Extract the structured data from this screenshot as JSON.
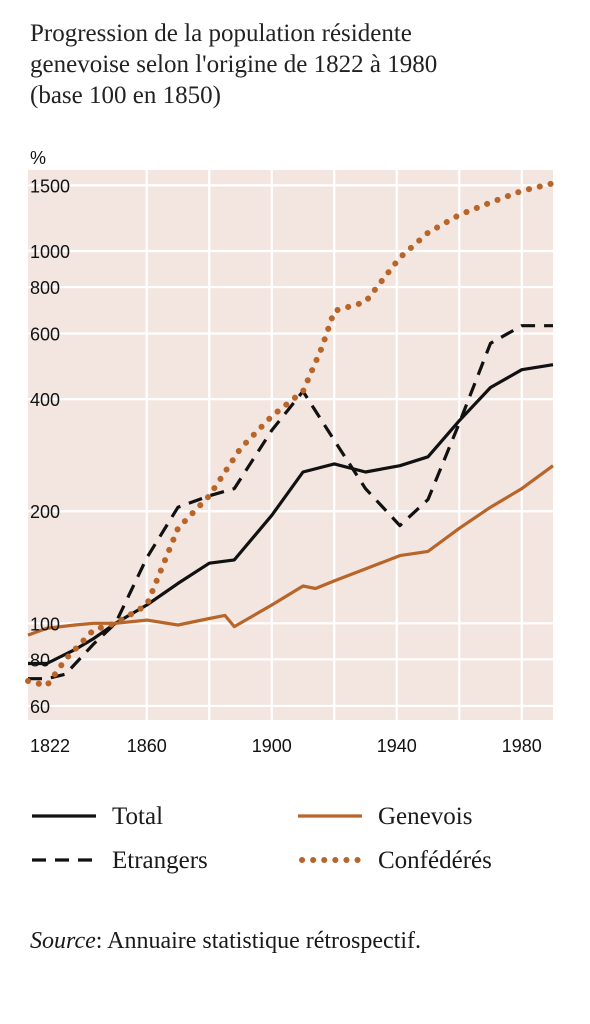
{
  "chart_data": {
    "type": "line",
    "title": "Progression de la population résidente genevoise selon l'origine de 1822 à 1980 (base 100 en 1850)",
    "title_lines": [
      "Progression de la population résidente",
      "genevoise selon l'origine de 1822 à 1980",
      "(base 100 en 1850)"
    ],
    "ylabel": "%",
    "yscale": "log",
    "ylim": [
      55,
      1650
    ],
    "xlim": [
      1822,
      1990
    ],
    "grid": true,
    "y_ticks": [
      60,
      80,
      100,
      200,
      400,
      600,
      800,
      1000,
      1500
    ],
    "y_tick_labels": [
      "60",
      "80",
      "100",
      "200",
      "400",
      "600",
      "800",
      "1000",
      "1500"
    ],
    "x_ticks": [
      1822,
      1860,
      1900,
      1940,
      1980
    ],
    "x_tick_labels": [
      "1822",
      "1860",
      "1900",
      "1940",
      "1980"
    ],
    "x_gridlines": [
      1860,
      1880,
      1900,
      1920,
      1940,
      1960,
      1980
    ],
    "y_gridlines": [
      60,
      80,
      100,
      200,
      400,
      600,
      800,
      1000,
      1500
    ],
    "legend_position": "bottom",
    "series": [
      {
        "name": "Total",
        "color": "#111111",
        "style": "solid",
        "x": [
          1822,
          1828,
          1837,
          1843,
          1850,
          1860,
          1870,
          1880,
          1888,
          1900,
          1910,
          1920,
          1930,
          1941,
          1950,
          1960,
          1970,
          1980,
          1990
        ],
        "y": [
          78,
          78,
          85,
          91,
          100,
          112,
          128,
          145,
          148,
          195,
          255,
          268,
          255,
          265,
          280,
          350,
          430,
          480,
          495
        ]
      },
      {
        "name": "Genevois",
        "color": "#b8652a",
        "style": "solid",
        "x": [
          1822,
          1828,
          1837,
          1843,
          1850,
          1860,
          1870,
          1880,
          1885,
          1888,
          1900,
          1910,
          1914,
          1920,
          1930,
          1941,
          1950,
          1960,
          1970,
          1980,
          1990
        ],
        "y": [
          93,
          97,
          99,
          100,
          100,
          102,
          99,
          103,
          105,
          98,
          112,
          126,
          124,
          130,
          140,
          152,
          156,
          180,
          205,
          230,
          265
        ]
      },
      {
        "name": "Etrangers",
        "color": "#111111",
        "style": "dashed",
        "x": [
          1822,
          1828,
          1834,
          1843,
          1850,
          1860,
          1870,
          1880,
          1888,
          1900,
          1910,
          1920,
          1930,
          1941,
          1950,
          1960,
          1970,
          1980,
          1990
        ],
        "y": [
          71,
          71,
          73,
          88,
          100,
          150,
          205,
          220,
          230,
          330,
          420,
          310,
          230,
          183,
          215,
          345,
          565,
          630,
          630
        ]
      },
      {
        "name": "Confédérés",
        "color": "#b8652a",
        "style": "dotted",
        "x": [
          1822,
          1828,
          1834,
          1843,
          1850,
          1860,
          1870,
          1880,
          1890,
          1900,
          1910,
          1916,
          1920,
          1930,
          1941,
          1950,
          1960,
          1970,
          1980,
          1990
        ],
        "y": [
          70,
          68,
          80,
          96,
          100,
          112,
          180,
          220,
          295,
          360,
          420,
          550,
          690,
          730,
          960,
          1120,
          1250,
          1350,
          1450,
          1520
        ]
      }
    ],
    "legend": {
      "columns": [
        [
          "Total",
          "Etrangers"
        ],
        [
          "Genevois",
          "Confédérés"
        ]
      ]
    }
  },
  "source": {
    "label": "Source",
    "separator": ":",
    "text": " Annuaire statistique rétrospectif."
  }
}
